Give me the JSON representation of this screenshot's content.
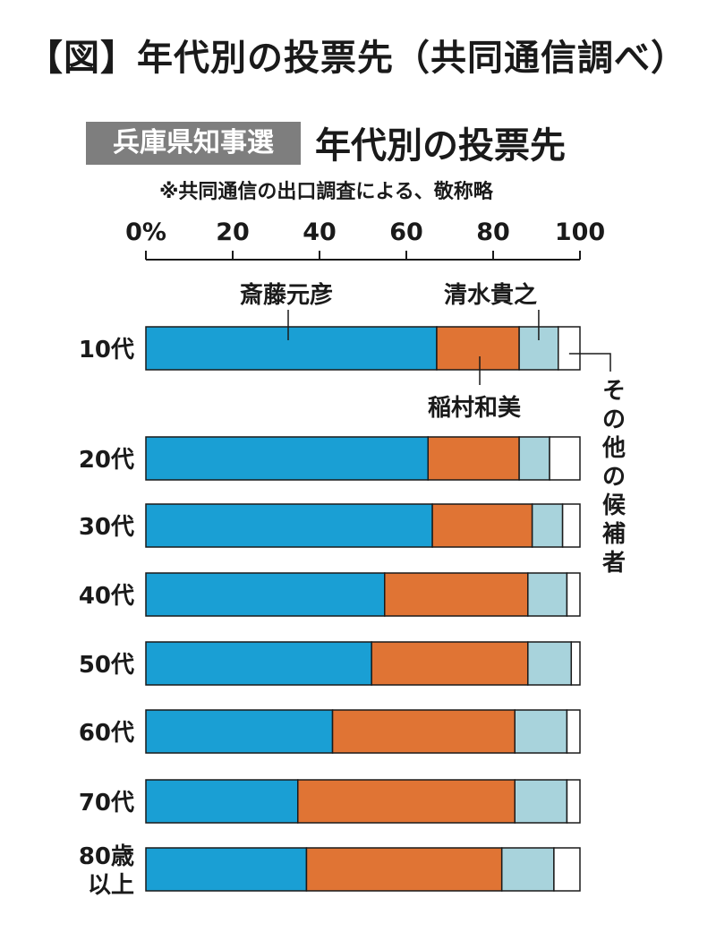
{
  "header": {
    "title": "【図】年代別の投票先（共同通信調べ）",
    "badge": "兵庫県知事選",
    "subtitle": "年代別の投票先",
    "note": "※共同通信の出口調査による、敬称略"
  },
  "chart_data": {
    "type": "bar",
    "orientation": "horizontal",
    "stacked": true,
    "x_ticks": [
      "0%",
      "20",
      "40",
      "60",
      "80",
      "100"
    ],
    "xlim": [
      0,
      100
    ],
    "categories": [
      "10代",
      "20代",
      "30代",
      "40代",
      "50代",
      "60代",
      "70代",
      "80歳\n以上"
    ],
    "series": [
      {
        "name": "斎藤元彦",
        "color": "#1a9fd4",
        "values": [
          67,
          65,
          66,
          55,
          52,
          43,
          35,
          37
        ]
      },
      {
        "name": "稲村和美",
        "color": "#e07434",
        "values": [
          19,
          21,
          23,
          33,
          36,
          42,
          50,
          45
        ]
      },
      {
        "name": "清水貴之",
        "color": "#a8d3dc",
        "values": [
          9,
          7,
          7,
          9,
          10,
          12,
          12,
          12
        ]
      },
      {
        "name": "その他の候補者",
        "color": "#ffffff",
        "values": [
          5,
          7,
          4,
          3,
          2,
          3,
          3,
          6
        ]
      }
    ],
    "annotation_name": "その他の候補者",
    "grid": false
  }
}
